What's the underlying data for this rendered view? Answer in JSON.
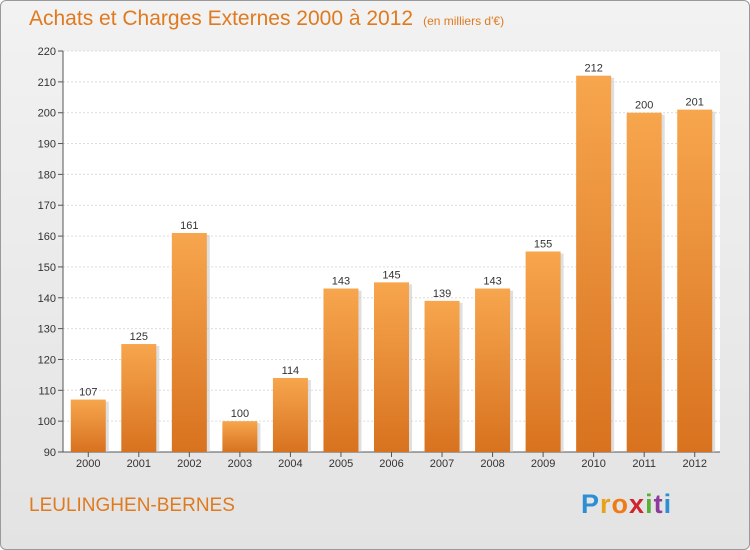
{
  "header": {
    "title": "Achats et Charges Externes 2000 à 2012",
    "unit": "(en milliers d'€)"
  },
  "footer": {
    "place": "LEULINGHEN-BERNES",
    "logo_letters": [
      "P",
      "r",
      "o",
      "x",
      "i",
      "t",
      "i"
    ],
    "logo_colors": [
      "#2c8fd6",
      "#e8a21a",
      "#f07b14",
      "#d0252d",
      "#58b136",
      "#8c3d9a",
      "#2c8fd6"
    ]
  },
  "chart_data": {
    "type": "bar",
    "categories": [
      "2000",
      "2001",
      "2002",
      "2003",
      "2004",
      "2005",
      "2006",
      "2007",
      "2008",
      "2009",
      "2010",
      "2011",
      "2012"
    ],
    "values": [
      107,
      125,
      161,
      100,
      114,
      143,
      145,
      139,
      143,
      155,
      212,
      200,
      201
    ],
    "title": "Achats et Charges Externes 2000 à 2012",
    "subtitle": "(en milliers d'€)",
    "xlabel": "",
    "ylabel": "",
    "ylim": [
      90,
      220
    ],
    "yticks": [
      90,
      100,
      110,
      120,
      130,
      140,
      150,
      160,
      170,
      180,
      190,
      200,
      210,
      220
    ],
    "grid": true,
    "bar_color": "#f0923a",
    "legend": "none"
  }
}
